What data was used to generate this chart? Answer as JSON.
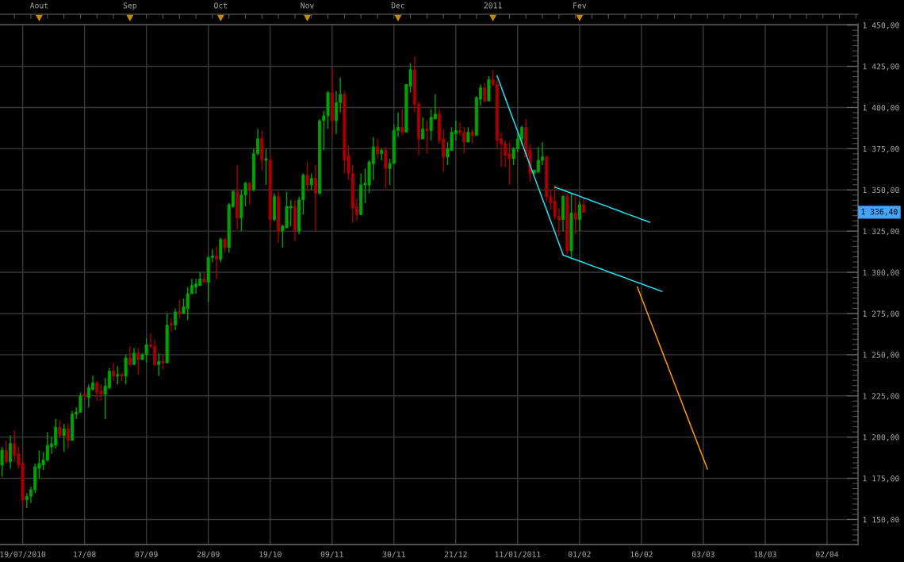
{
  "chart_data": {
    "type": "candlestick",
    "categories": [
      null,
      null,
      null,
      null,
      null,
      "19/07/2010",
      null,
      null,
      null,
      null,
      null,
      null,
      null,
      null,
      null,
      null,
      null,
      null,
      null,
      null,
      "17/08",
      null,
      null,
      null,
      null,
      null,
      null,
      null,
      null,
      null,
      null,
      null,
      null,
      null,
      null,
      "07/09",
      null,
      null,
      null,
      null,
      null,
      null,
      null,
      null,
      null,
      null,
      null,
      null,
      null,
      null,
      "28/09",
      null,
      null,
      null,
      null,
      null,
      null,
      null,
      null,
      null,
      null,
      null,
      null,
      null,
      null,
      "19/10",
      null,
      null,
      null,
      null,
      null,
      null,
      null,
      null,
      null,
      null,
      null,
      null,
      null,
      null,
      "09/11",
      null,
      null,
      null,
      null,
      null,
      null,
      null,
      null,
      null,
      null,
      null,
      null,
      null,
      null,
      "30/11",
      null,
      null,
      null,
      null,
      null,
      null,
      null,
      null,
      null,
      null,
      null,
      null,
      null,
      null,
      "21/12",
      null,
      null,
      null,
      null,
      null,
      null,
      null,
      null,
      null,
      null,
      null,
      null,
      null,
      null,
      "11/01/2011",
      null,
      null,
      null,
      null,
      null,
      null,
      null,
      null,
      null,
      null,
      null,
      null,
      null,
      null,
      "01/02",
      null,
      null,
      null,
      null,
      null,
      null,
      null,
      null,
      null,
      null,
      null,
      null,
      null,
      null,
      "16/02",
      null,
      null,
      null,
      null,
      null,
      null,
      null,
      null,
      null,
      null,
      null,
      null,
      null,
      null,
      "03/03",
      null,
      null,
      null,
      null,
      null,
      null,
      null,
      null,
      null,
      null,
      null,
      null,
      null,
      null,
      "18/03",
      null,
      null,
      null,
      null,
      null,
      null,
      null,
      null,
      null,
      null,
      null,
      null,
      null,
      null,
      "02/04",
      null,
      null,
      null,
      null,
      null,
      null,
      null
    ],
    "ohlc": [
      [
        1183,
        1194,
        1176,
        1192
      ],
      [
        1192,
        1198,
        1184,
        1185
      ],
      [
        1185,
        1201,
        1181,
        1196
      ],
      [
        1196,
        1204,
        1185,
        1189
      ],
      [
        1190,
        1194,
        1181,
        1183
      ],
      [
        1184,
        1187,
        1158,
        1162
      ],
      [
        1162,
        1166,
        1157,
        1164
      ],
      [
        1164,
        1170,
        1160,
        1168
      ],
      [
        1168,
        1184,
        1166,
        1182
      ],
      [
        1181,
        1192,
        1175,
        1184
      ],
      [
        1183,
        1191,
        1180,
        1186
      ],
      [
        1186,
        1203,
        1185,
        1195
      ],
      [
        1194,
        1200,
        1190,
        1196
      ],
      [
        1195,
        1211,
        1193,
        1206
      ],
      [
        1206,
        1210,
        1199,
        1201
      ],
      [
        1201,
        1208,
        1191,
        1205
      ],
      [
        1205,
        1208,
        1193,
        1198
      ],
      [
        1198,
        1216,
        1198,
        1214
      ],
      [
        1214,
        1218,
        1211,
        1215
      ],
      [
        1215,
        1227,
        1215,
        1225
      ],
      [
        1226,
        1228,
        1223,
        1225
      ],
      [
        1224,
        1232,
        1218,
        1230
      ],
      [
        1229,
        1237,
        1228,
        1233
      ],
      [
        1233,
        1234,
        1222,
        1227
      ],
      [
        1228,
        1232,
        1222,
        1226
      ],
      [
        1226,
        1236,
        1211,
        1231
      ],
      [
        1230,
        1242,
        1229,
        1240
      ],
      [
        1240,
        1245,
        1234,
        1237
      ],
      [
        1237,
        1243,
        1232,
        1238
      ],
      [
        1238,
        1239,
        1234,
        1237
      ],
      [
        1237,
        1250,
        1232,
        1248
      ],
      [
        1248,
        1255,
        1243,
        1244
      ],
      [
        1244,
        1254,
        1244,
        1251
      ],
      [
        1251,
        1254,
        1238,
        1247
      ],
      [
        1247,
        1251,
        1247,
        1250
      ],
      [
        1250,
        1260,
        1245,
        1256
      ],
      [
        1256,
        1263,
        1254,
        1255
      ],
      [
        1255,
        1259,
        1243,
        1244
      ],
      [
        1244,
        1251,
        1237,
        1246
      ],
      [
        1246,
        1250,
        1241,
        1245
      ],
      [
        1245,
        1275,
        1245,
        1268
      ],
      [
        1269,
        1272,
        1264,
        1268
      ],
      [
        1268,
        1278,
        1265,
        1276
      ],
      [
        1276,
        1283,
        1272,
        1275
      ],
      [
        1275,
        1284,
        1275,
        1279
      ],
      [
        1278,
        1291,
        1271,
        1287
      ],
      [
        1287,
        1296,
        1287,
        1292
      ],
      [
        1291,
        1296,
        1287,
        1293
      ],
      [
        1292,
        1300,
        1292,
        1296
      ],
      [
        1296,
        1300,
        1294,
        1294
      ],
      [
        1294,
        1310,
        1282,
        1309
      ],
      [
        1309,
        1314,
        1306,
        1310
      ],
      [
        1310,
        1316,
        1296,
        1308
      ],
      [
        1308,
        1321,
        1306,
        1320
      ],
      [
        1320,
        1321,
        1312,
        1315
      ],
      [
        1315,
        1342,
        1312,
        1341
      ],
      [
        1340,
        1350,
        1339,
        1349
      ],
      [
        1349,
        1365,
        1326,
        1333
      ],
      [
        1333,
        1350,
        1325,
        1347
      ],
      [
        1347,
        1355,
        1340,
        1354
      ],
      [
        1354,
        1355,
        1341,
        1350
      ],
      [
        1350,
        1375,
        1349,
        1372
      ],
      [
        1372,
        1387,
        1371,
        1381
      ],
      [
        1381,
        1386,
        1362,
        1368
      ],
      [
        1368,
        1375,
        1353,
        1369
      ],
      [
        1368,
        1371,
        1328,
        1332
      ],
      [
        1332,
        1348,
        1331,
        1346
      ],
      [
        1346,
        1349,
        1318,
        1325
      ],
      [
        1325,
        1329,
        1315,
        1328
      ],
      [
        1327,
        1349,
        1327,
        1340
      ],
      [
        1339,
        1344,
        1328,
        1340
      ],
      [
        1340,
        1344,
        1319,
        1325
      ],
      [
        1325,
        1346,
        1323,
        1344
      ],
      [
        1344,
        1360,
        1335,
        1359
      ],
      [
        1359,
        1367,
        1349,
        1353
      ],
      [
        1353,
        1360,
        1350,
        1357
      ],
      [
        1357,
        1365,
        1325,
        1348
      ],
      [
        1348,
        1393,
        1347,
        1392
      ],
      [
        1392,
        1398,
        1374,
        1395
      ],
      [
        1395,
        1410,
        1387,
        1409
      ],
      [
        1409,
        1424,
        1383,
        1392
      ],
      [
        1392,
        1410,
        1384,
        1403
      ],
      [
        1403,
        1418,
        1397,
        1408
      ],
      [
        1408,
        1410,
        1360,
        1368
      ],
      [
        1371,
        1377,
        1356,
        1360
      ],
      [
        1360,
        1365,
        1330,
        1339
      ],
      [
        1340,
        1345,
        1331,
        1335
      ],
      [
        1335,
        1360,
        1335,
        1353
      ],
      [
        1353,
        1363,
        1342,
        1354
      ],
      [
        1353,
        1368,
        1348,
        1367
      ],
      [
        1366,
        1382,
        1356,
        1376
      ],
      [
        1376,
        1381,
        1369,
        1372
      ],
      [
        1372,
        1375,
        1368,
        1374
      ],
      [
        1374,
        1376,
        1351,
        1363
      ],
      [
        1363,
        1369,
        1353,
        1366
      ],
      [
        1366,
        1390,
        1366,
        1386
      ],
      [
        1386,
        1397,
        1382,
        1388
      ],
      [
        1388,
        1399,
        1383,
        1385
      ],
      [
        1385,
        1414,
        1385,
        1414
      ],
      [
        1413,
        1427,
        1409,
        1423
      ],
      [
        1423,
        1431,
        1397,
        1402
      ],
      [
        1402,
        1404,
        1371,
        1381
      ],
      [
        1381,
        1394,
        1381,
        1387
      ],
      [
        1387,
        1392,
        1372,
        1386
      ],
      [
        1386,
        1399,
        1380,
        1394
      ],
      [
        1393,
        1408,
        1393,
        1396
      ],
      [
        1396,
        1399,
        1378,
        1380
      ],
      [
        1381,
        1387,
        1361,
        1370
      ],
      [
        1370,
        1379,
        1365,
        1375
      ],
      [
        1374,
        1388,
        1374,
        1385
      ],
      [
        1384,
        1392,
        1380,
        1386
      ],
      [
        1386,
        1391,
        1383,
        1385
      ],
      [
        1385,
        1388,
        1372,
        1379
      ],
      [
        1379,
        1388,
        1379,
        1385
      ],
      [
        1385,
        1387,
        1378,
        1383
      ],
      [
        1383,
        1407,
        1383,
        1406
      ],
      [
        1405,
        1414,
        1401,
        1412
      ],
      [
        1412,
        1415,
        1403,
        1404
      ],
      [
        1404,
        1419,
        1404,
        1417
      ],
      [
        1417,
        1423,
        1413,
        1414
      ],
      [
        1414,
        1417,
        1375,
        1380
      ],
      [
        1381,
        1385,
        1364,
        1378
      ],
      [
        1378,
        1380,
        1364,
        1371
      ],
      [
        1372,
        1379,
        1353,
        1369
      ],
      [
        1369,
        1376,
        1365,
        1375
      ],
      [
        1375,
        1385,
        1373,
        1381
      ],
      [
        1381,
        1389,
        1377,
        1388
      ],
      [
        1388,
        1393,
        1370,
        1370
      ],
      [
        1374,
        1378,
        1355,
        1360
      ],
      [
        1360,
        1362,
        1360,
        1362
      ],
      [
        1361,
        1376,
        1360,
        1368
      ],
      [
        1368,
        1379,
        1365,
        1370
      ],
      [
        1370,
        1371,
        1343,
        1346
      ],
      [
        1346,
        1350,
        1338,
        1342
      ],
      [
        1343,
        1353,
        1332,
        1334
      ],
      [
        1334,
        1339,
        1322,
        1332
      ],
      [
        1332,
        1347,
        1325,
        1346
      ],
      [
        1346,
        1348,
        1311,
        1313
      ],
      [
        1313,
        1348,
        1309,
        1336
      ],
      [
        1336,
        1346,
        1323,
        1332
      ],
      [
        1332,
        1343,
        1325,
        1341
      ],
      [
        1341,
        1345,
        1336,
        1336.4
      ],
      null,
      null,
      null,
      null,
      null,
      null,
      null,
      null,
      null,
      null,
      null,
      null,
      null,
      null,
      null,
      null,
      null,
      null,
      null,
      null,
      null,
      null,
      null,
      null,
      null,
      null,
      null,
      null,
      null,
      null,
      null,
      null,
      null,
      null,
      null,
      null,
      null,
      null,
      null,
      null,
      null,
      null,
      null,
      null,
      null,
      null,
      null,
      null,
      null,
      null,
      null,
      null,
      null,
      null,
      null,
      null,
      null,
      null,
      null,
      null,
      null,
      null,
      null,
      null,
      null,
      null
    ],
    "colors": [
      "#00a400",
      "#a80000",
      "#00a400",
      "#a80000",
      "#a80000",
      "#a80000",
      "#00a400",
      "#00a400",
      "#00a400",
      "#00a400",
      "#00a400",
      "#00a400",
      "#00a400",
      "#00a400",
      "#a80000",
      "#00a400",
      "#a80000",
      "#00a400",
      "#00a400",
      "#00a400",
      "#a80000",
      "#00a400",
      "#00a400",
      "#a80000",
      "#a80000",
      "#00a400",
      "#00a400",
      "#a80000",
      "#00a400",
      "#a80000",
      "#00a400",
      "#a80000",
      "#00a400",
      "#a80000",
      "#00a400",
      "#00a400",
      "#a80000",
      "#a80000",
      "#00a400",
      "#a80000",
      "#00a400",
      "#a80000",
      "#00a400",
      "#a80000",
      "#00a400",
      "#00a400",
      "#00a400",
      "#00a400",
      "#00a400",
      "#a80000",
      "#00a400",
      "#00a400",
      "#a80000",
      "#00a400",
      "#a80000",
      "#00a400",
      "#00a400",
      "#a80000",
      "#00a400",
      "#00a400",
      "#a80000",
      "#00a400",
      "#00a400",
      "#a80000",
      "#00a400",
      "#a80000",
      "#00a400",
      "#a80000",
      "#00a400",
      "#00a400",
      "#00a400",
      "#a80000",
      "#00a400",
      "#00a400",
      "#a80000",
      "#00a400",
      "#a80000",
      "#00a400",
      "#00a400",
      "#00a400",
      "#a80000",
      "#00a400",
      "#00a400",
      "#a80000",
      "#a80000",
      "#a80000",
      "#a80000",
      "#00a400",
      "#00a400",
      "#00a400",
      "#00a400",
      "#a80000",
      "#00a400",
      "#a80000",
      "#00a400",
      "#00a400",
      "#00a400",
      "#a80000",
      "#00a400",
      "#00a400",
      "#a80000",
      "#a80000",
      "#00a400",
      "#a80000",
      "#00a400",
      "#00a400",
      "#a80000",
      "#a80000",
      "#00a400",
      "#00a400",
      "#00a400",
      "#a80000",
      "#a80000",
      "#00a400",
      "#a80000",
      "#00a400",
      "#00a400",
      "#a80000",
      "#00a400",
      "#a80000",
      "#a80000",
      "#a80000",
      "#a80000",
      "#a80000",
      "#00a400",
      "#00a400",
      "#00a400",
      "#a80000",
      "#a80000",
      "#00a400",
      "#00a400",
      "#00a400",
      "#a80000",
      "#a80000",
      "#a80000",
      "#a80000",
      "#00a400",
      "#a80000",
      "#00a400",
      "#a80000",
      "#00a400",
      "#a80000",
      null,
      null,
      null,
      null,
      null,
      null,
      null,
      null,
      null,
      null,
      null,
      null,
      null,
      null,
      null,
      null,
      null,
      null,
      null,
      null,
      null,
      null,
      null,
      null,
      null,
      null,
      null,
      null,
      null,
      null,
      null,
      null,
      null,
      null,
      null,
      null,
      null,
      null,
      null,
      null,
      null,
      null,
      null,
      null,
      null,
      null,
      null,
      null,
      null,
      null,
      null,
      null,
      null,
      null,
      null,
      null,
      null,
      null,
      null,
      null,
      null,
      null,
      null,
      null,
      null,
      null
    ],
    "series": [
      {
        "type": "line",
        "color": "#1fe0f0",
        "values": [
          null,
          null,
          null,
          null,
          null,
          null,
          null,
          null,
          null,
          null,
          null,
          null,
          null,
          null,
          null,
          null,
          null,
          null,
          null,
          null,
          null,
          null,
          null,
          null,
          null,
          null,
          null,
          null,
          null,
          null,
          null,
          null,
          null,
          null,
          null,
          null,
          null,
          null,
          null,
          null,
          null,
          null,
          null,
          null,
          null,
          null,
          null,
          null,
          null,
          null,
          null,
          null,
          null,
          null,
          null,
          null,
          null,
          null,
          null,
          null,
          null,
          null,
          null,
          null,
          null,
          null,
          null,
          null,
          null,
          null,
          null,
          null,
          null,
          null,
          null,
          null,
          null,
          null,
          null,
          null,
          null,
          null,
          null,
          null,
          null,
          null,
          null,
          null,
          null,
          null,
          null,
          null,
          null,
          null,
          null,
          null,
          null,
          null,
          null,
          null,
          null,
          null,
          null,
          null,
          null,
          null,
          null,
          null,
          null,
          null,
          null,
          null,
          null,
          null,
          null,
          null,
          null,
          null,
          null,
          null,
          1419.3,
          1412.5,
          1405.7,
          1398.9,
          1392.1,
          1385.4,
          1378.6,
          1371.8,
          1365.0,
          1358.2,
          1351.4,
          1344.6,
          1337.9,
          1331.1,
          1324.3,
          1317.5,
          1310.7,
          null,
          null,
          null,
          null,
          null,
          null,
          null,
          null,
          null,
          null,
          null,
          null,
          null,
          null,
          null,
          null,
          null,
          null,
          null,
          null,
          null,
          null,
          null,
          null,
          null,
          null,
          null,
          null,
          null,
          null,
          null,
          null,
          null,
          null,
          null,
          null,
          null,
          null,
          null,
          null,
          null,
          null,
          null,
          null,
          null,
          null,
          null,
          null,
          null,
          null,
          null,
          null,
          null,
          null,
          null,
          null,
          null,
          null,
          null,
          null,
          null,
          null,
          null,
          null,
          null,
          null,
          null,
          null,
          null,
          null,
          null
        ]
      },
      {
        "type": "line",
        "color": "#1fe0f0",
        "values": [
          null,
          null,
          null,
          null,
          null,
          null,
          null,
          null,
          null,
          null,
          null,
          null,
          null,
          null,
          null,
          null,
          null,
          null,
          null,
          null,
          null,
          null,
          null,
          null,
          null,
          null,
          null,
          null,
          null,
          null,
          null,
          null,
          null,
          null,
          null,
          null,
          null,
          null,
          null,
          null,
          null,
          null,
          null,
          null,
          null,
          null,
          null,
          null,
          null,
          null,
          null,
          null,
          null,
          null,
          null,
          null,
          null,
          null,
          null,
          null,
          null,
          null,
          null,
          null,
          null,
          null,
          null,
          null,
          null,
          null,
          null,
          null,
          null,
          null,
          null,
          null,
          null,
          null,
          null,
          null,
          null,
          null,
          null,
          null,
          null,
          null,
          null,
          null,
          null,
          null,
          null,
          null,
          null,
          null,
          null,
          null,
          null,
          null,
          null,
          null,
          null,
          null,
          null,
          null,
          null,
          null,
          null,
          null,
          null,
          null,
          null,
          null,
          null,
          null,
          null,
          null,
          null,
          null,
          null,
          null,
          null,
          null,
          null,
          null,
          null,
          null,
          null,
          null,
          null,
          null,
          null,
          null,
          null,
          null,
          null,
          null,
          1310.5,
          1309.5,
          1308.6,
          1307.7,
          1306.8,
          1305.9,
          1304.9,
          1304.0,
          1303.1,
          1302.2,
          1301.3,
          1300.3,
          1299.4,
          1298.5,
          1297.6,
          1296.7,
          1295.7,
          1294.8,
          1293.9,
          1293.0,
          1292.1,
          1291.1,
          1290.2,
          1289.3,
          1288.4,
          null,
          null,
          null,
          null,
          null,
          null,
          null,
          null,
          null,
          null,
          null,
          null,
          null,
          null,
          null,
          null,
          null,
          null,
          null,
          null,
          null,
          null,
          null,
          null,
          null,
          null,
          null,
          null,
          null,
          null,
          null,
          null,
          null,
          null,
          null,
          null,
          null,
          null,
          null,
          null,
          null,
          null,
          null,
          null,
          null,
          null,
          null
        ]
      },
      {
        "type": "line",
        "color": "#1fe0f0",
        "values": [
          null,
          null,
          null,
          null,
          null,
          null,
          null,
          null,
          null,
          null,
          null,
          null,
          null,
          null,
          null,
          null,
          null,
          null,
          null,
          null,
          null,
          null,
          null,
          null,
          null,
          null,
          null,
          null,
          null,
          null,
          null,
          null,
          null,
          null,
          null,
          null,
          null,
          null,
          null,
          null,
          null,
          null,
          null,
          null,
          null,
          null,
          null,
          null,
          null,
          null,
          null,
          null,
          null,
          null,
          null,
          null,
          null,
          null,
          null,
          null,
          null,
          null,
          null,
          null,
          null,
          null,
          null,
          null,
          null,
          null,
          null,
          null,
          null,
          null,
          null,
          null,
          null,
          null,
          null,
          null,
          null,
          null,
          null,
          null,
          null,
          null,
          null,
          null,
          null,
          null,
          null,
          null,
          null,
          null,
          null,
          null,
          null,
          null,
          null,
          null,
          null,
          null,
          null,
          null,
          null,
          null,
          null,
          null,
          null,
          null,
          null,
          null,
          null,
          null,
          null,
          null,
          null,
          null,
          null,
          null,
          null,
          null,
          null,
          null,
          null,
          null,
          null,
          null,
          null,
          null,
          null,
          null,
          null,
          null,
          1351.7,
          1350.8,
          1349.9,
          1348.9,
          1348.0,
          1347.1,
          1346.2,
          1345.2,
          1344.3,
          1343.4,
          1342.4,
          1341.5,
          1340.6,
          1339.7,
          1338.7,
          1337.8,
          1336.9,
          1335.9,
          1335.0,
          1334.1,
          1333.2,
          1332.2,
          1331.3,
          1330.4,
          null,
          null,
          null,
          null,
          null,
          null,
          null,
          null,
          null,
          null,
          null,
          null,
          null,
          null,
          null,
          null,
          null,
          null,
          null,
          null,
          null,
          null,
          null,
          null,
          null,
          null,
          null,
          null,
          null,
          null,
          null,
          null,
          null,
          null,
          null,
          null,
          null,
          null,
          null,
          null,
          null,
          null,
          null,
          null,
          null,
          null,
          null,
          null,
          null,
          null
        ]
      },
      {
        "type": "line",
        "color": "#ff9a00",
        "values": [
          null,
          null,
          null,
          null,
          null,
          null,
          null,
          null,
          null,
          null,
          null,
          null,
          null,
          null,
          null,
          null,
          null,
          null,
          null,
          null,
          null,
          null,
          null,
          null,
          null,
          null,
          null,
          null,
          null,
          null,
          null,
          null,
          null,
          null,
          null,
          null,
          null,
          null,
          null,
          null,
          null,
          null,
          null,
          null,
          null,
          null,
          null,
          null,
          null,
          null,
          null,
          null,
          null,
          null,
          null,
          null,
          null,
          null,
          null,
          null,
          null,
          null,
          null,
          null,
          null,
          null,
          null,
          null,
          null,
          null,
          null,
          null,
          null,
          null,
          null,
          null,
          null,
          null,
          null,
          null,
          null,
          null,
          null,
          null,
          null,
          null,
          null,
          null,
          null,
          null,
          null,
          null,
          null,
          null,
          null,
          null,
          null,
          null,
          null,
          null,
          null,
          null,
          null,
          null,
          null,
          null,
          null,
          null,
          null,
          null,
          null,
          null,
          null,
          null,
          null,
          null,
          null,
          null,
          null,
          null,
          null,
          null,
          null,
          null,
          null,
          null,
          null,
          null,
          null,
          null,
          null,
          null,
          null,
          null,
          null,
          null,
          null,
          null,
          null,
          null,
          null,
          null,
          null,
          null,
          null,
          null,
          null,
          null,
          null,
          null,
          null,
          null,
          null,
          null,
          1291.1,
          1284.6,
          1278.1,
          1271.6,
          1265.1,
          1258.6,
          1252.1,
          1245.6,
          1239.1,
          1232.6,
          1226.1,
          1219.6,
          1213.1,
          1206.6,
          1200.1,
          1193.6,
          1187.1,
          1180.6,
          null,
          null,
          null,
          null,
          null,
          null,
          null,
          null,
          null,
          null,
          null,
          null,
          null,
          null,
          null,
          null,
          null,
          null,
          null,
          null,
          null,
          null,
          null,
          null,
          null,
          null,
          null,
          null,
          null,
          null,
          null,
          null,
          null,
          null,
          null,
          null
        ]
      }
    ],
    "ylim": [
      1134.8,
      1450.8
    ],
    "x2lim": [
      "2010-07-19T12:00",
      "2011-05-05T12:00"
    ],
    "x2ticks": [
      {
        "value": "2010-08",
        "label": "Aout"
      },
      {
        "value": "2010-09",
        "label": "Sep"
      },
      {
        "value": "2010-10",
        "label": "Oct"
      },
      {
        "value": "2010-11",
        "label": "Nov"
      },
      {
        "value": "2010-12",
        "label": "Dec"
      },
      {
        "value": "2011",
        "label": "2011"
      },
      {
        "value": "2011-02",
        "label": "Fev"
      }
    ],
    "yticks": [
      {
        "value": 1150,
        "label": "1 150,00"
      },
      {
        "value": 1175,
        "label": "1 175,00"
      },
      {
        "value": 1200,
        "label": "1 200,00"
      },
      {
        "value": 1225,
        "label": "1 225,00"
      },
      {
        "value": 1250,
        "label": "1 250,00"
      },
      {
        "value": 1275,
        "label": "1 275,00"
      },
      {
        "value": 1300,
        "label": "1 300,00"
      },
      {
        "value": 1325,
        "label": "1 325,00"
      },
      {
        "value": 1350,
        "label": "1 350,00"
      },
      {
        "value": 1375,
        "label": "1 375,00"
      },
      {
        "value": 1400,
        "label": "1 400,00"
      },
      {
        "value": 1425,
        "label": "1 425,00"
      },
      {
        "value": 1450,
        "label": "1 450,00"
      }
    ],
    "annotations": [
      "1 336,40"
    ],
    "grid": true
  }
}
